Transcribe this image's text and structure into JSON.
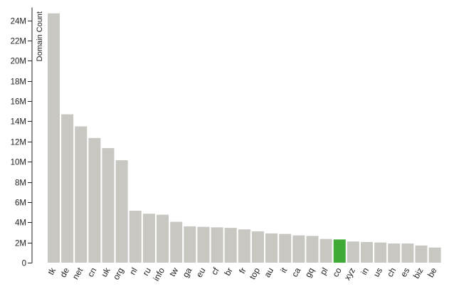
{
  "chart_data": {
    "type": "bar",
    "ylabel": "Domain Count",
    "xlabel": "",
    "ylim": [
      0,
      25
    ],
    "y_unit_suffix": "M",
    "y_ticks": [
      0,
      2,
      4,
      6,
      8,
      10,
      12,
      14,
      16,
      18,
      20,
      22,
      24
    ],
    "y_tick_labels": [
      "0",
      "2M",
      "4M",
      "6M",
      "8M",
      "10M",
      "12M",
      "14M",
      "16M",
      "18M",
      "20M",
      "22M",
      "24M"
    ],
    "categories": [
      "tk",
      "de",
      "net",
      "cn",
      "uk",
      "org",
      "nl",
      "ru",
      "info",
      "tw",
      "ga",
      "eu",
      "cf",
      "br",
      "fr",
      "top",
      "au",
      "it",
      "ca",
      "gq",
      "pl",
      "co",
      "xyz",
      "in",
      "us",
      "ch",
      "es",
      "biz",
      "be"
    ],
    "values": [
      24.7,
      14.7,
      13.5,
      12.35,
      11.35,
      10.15,
      5.15,
      4.85,
      4.75,
      4.05,
      3.6,
      3.55,
      3.5,
      3.45,
      3.3,
      3.1,
      2.9,
      2.85,
      2.7,
      2.65,
      2.35,
      2.3,
      2.1,
      2.05,
      2.0,
      1.9,
      1.9,
      1.7,
      1.5
    ],
    "highlight_category": "co",
    "colors": {
      "bar": "#c8c7c2",
      "highlight": "#3faa35",
      "axis": "#222222"
    },
    "grid": false,
    "legend": "none"
  }
}
